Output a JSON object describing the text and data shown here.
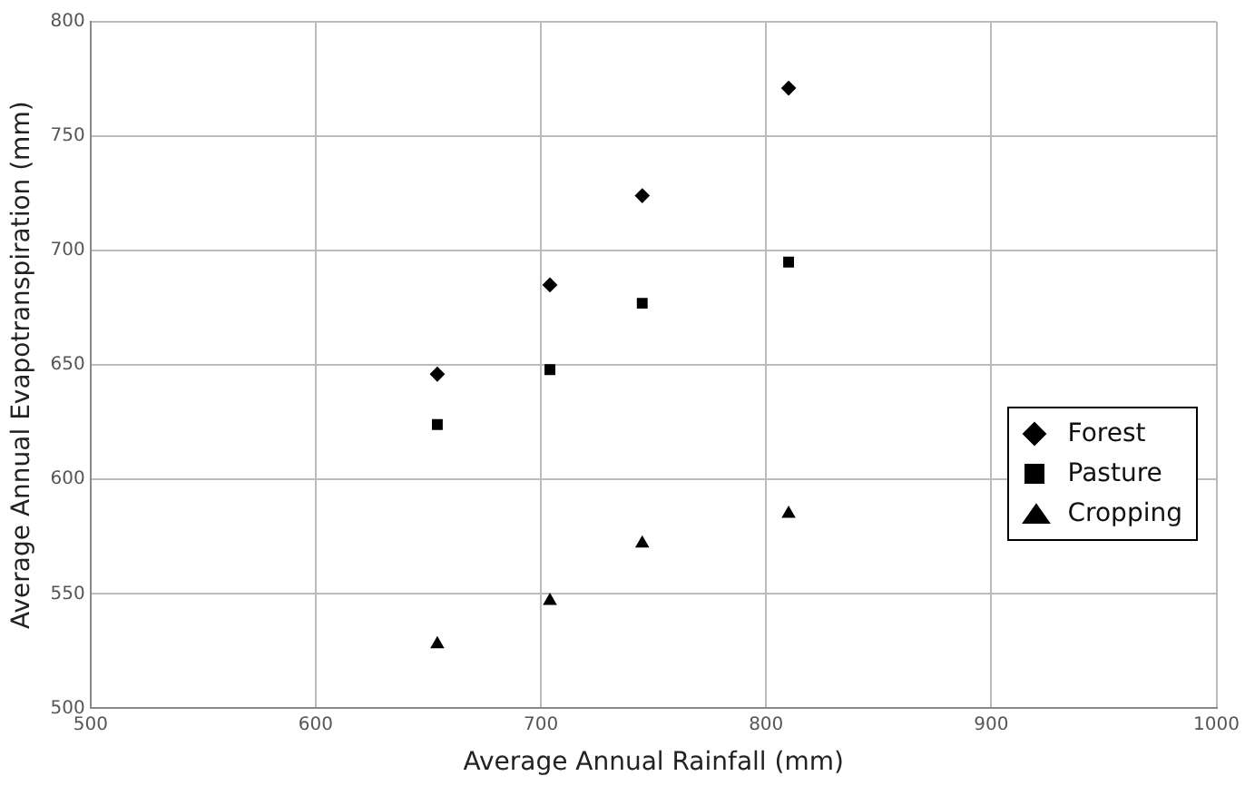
{
  "chart_data": {
    "type": "scatter",
    "xlabel": "Average Annual Rainfall (mm)",
    "ylabel": "Average Annual Evapotranspiration (mm)",
    "xlim": [
      500,
      1000
    ],
    "xticks": [
      500,
      600,
      700,
      800,
      900,
      1000
    ],
    "ylim": [
      500,
      800
    ],
    "yticks": [
      500,
      550,
      600,
      650,
      700,
      750,
      800
    ],
    "grid": true,
    "legend": "right",
    "series": [
      {
        "name": "Forest",
        "color": "#000000",
        "marker": "diamond",
        "x": [
          654,
          704,
          745,
          810
        ],
        "values": [
          646,
          685,
          724,
          771
        ]
      },
      {
        "name": "Pasture",
        "color": "#000000",
        "marker": "square",
        "x": [
          654,
          704,
          745,
          810
        ],
        "values": [
          624,
          648,
          677,
          695
        ]
      },
      {
        "name": "Cropping",
        "color": "#000000",
        "marker": "triangle",
        "x": [
          654,
          704,
          745,
          810
        ],
        "values": [
          528,
          547,
          572,
          585
        ]
      }
    ]
  }
}
